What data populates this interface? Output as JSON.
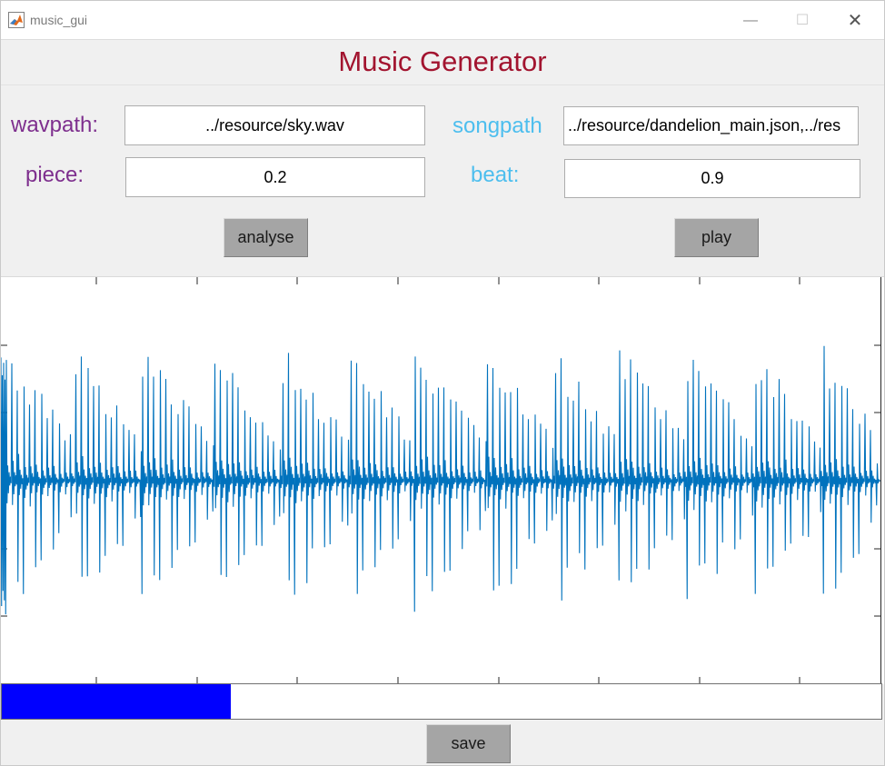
{
  "window": {
    "title": "music_gui",
    "controls": {
      "minimize": "—",
      "maximize": "☐",
      "close": "✕"
    }
  },
  "heading": "Music Generator",
  "fields": {
    "wavpath": {
      "label": "wavpath:",
      "value": "../resource/sky.wav"
    },
    "songpath": {
      "label": "songpath",
      "value": "../resource/dandelion_main.json,../res"
    },
    "piece": {
      "label": "piece:",
      "value": "0.2"
    },
    "beat": {
      "label": "beat:",
      "value": "0.9"
    }
  },
  "buttons": {
    "analyse": "analyse",
    "play": "play",
    "save": "save"
  },
  "progress": {
    "fraction": 0.26,
    "color": "#0000ff"
  },
  "colors": {
    "title": "#a2142f",
    "label_left": "#7e2f8e",
    "label_right": "#4dbeee",
    "waveform": "#0072bd",
    "button": "#a5a5a5"
  },
  "waveform": {
    "envelope_peaks": 0.8,
    "spikes_per_group": 11,
    "groups": 12
  }
}
